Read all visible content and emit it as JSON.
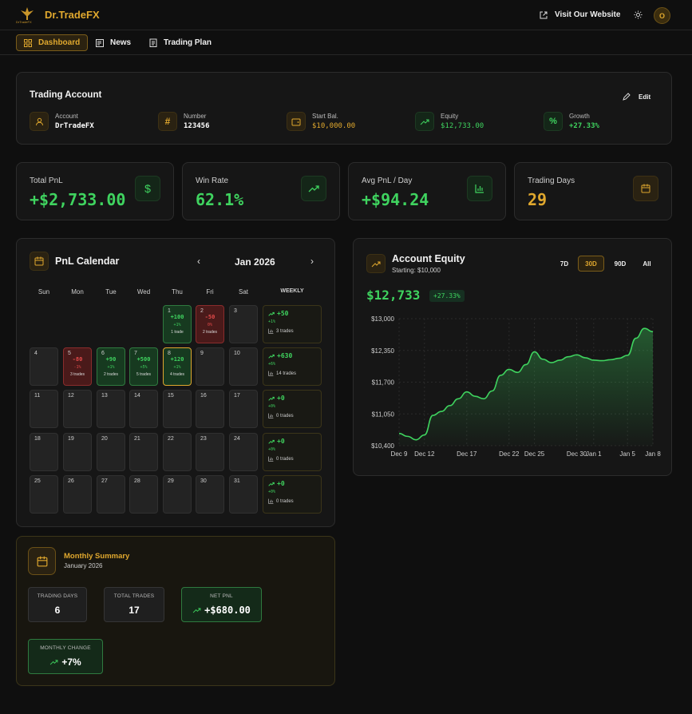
{
  "header": {
    "brand": "Dr.TradeFX",
    "logo_text": "DrTradeFX",
    "visit_label": "Visit Our Website",
    "avatar_initial": "O"
  },
  "nav": {
    "items": [
      {
        "label": "Dashboard",
        "active": true
      },
      {
        "label": "News"
      },
      {
        "label": "Trading Plan"
      }
    ]
  },
  "account": {
    "title": "Trading Account",
    "edit_label": "Edit",
    "fields": [
      {
        "label": "Account",
        "value": "DrTradeFX",
        "icon": "user-icon"
      },
      {
        "label": "Number",
        "value": "123456",
        "icon": "hash-icon"
      },
      {
        "label": "Start Bal.",
        "value": "$10,000.00",
        "icon": "wallet-icon"
      },
      {
        "label": "Equity",
        "value": "$12,733.00",
        "icon": "trending-up-icon"
      },
      {
        "label": "Growth",
        "value": "+27.33%",
        "icon": "percent-icon"
      }
    ]
  },
  "stats": [
    {
      "title": "Total PnL",
      "value": "+$2,733.00",
      "icon": "dollar-icon"
    },
    {
      "title": "Win Rate",
      "value": "62.1%",
      "icon": "trending-up-icon"
    },
    {
      "title": "Avg PnL / Day",
      "value": "+$94.24",
      "icon": "bar-chart-icon"
    },
    {
      "title": "Trading Days",
      "value": "29",
      "icon": "calendar-icon"
    }
  ],
  "calendar": {
    "title": "PnL Calendar",
    "month": "Jan 2026",
    "weekdays": [
      "Sun",
      "Mon",
      "Tue",
      "Wed",
      "Thu",
      "Fri",
      "Sat"
    ],
    "weekly_label": "WEEKLY",
    "days": {
      "1": {
        "pnl": "+100",
        "pct": "+1%",
        "trades": "1 trade",
        "status": "win"
      },
      "2": {
        "pnl": "-50",
        "pct": "0%",
        "trades": "2 trades",
        "status": "loss"
      },
      "5": {
        "pnl": "-80",
        "pct": "-1%",
        "trades": "3 trades",
        "status": "loss"
      },
      "6": {
        "pnl": "+90",
        "pct": "+1%",
        "trades": "2 trades",
        "status": "win"
      },
      "7": {
        "pnl": "+500",
        "pct": "+5%",
        "trades": "5 trades",
        "status": "win"
      },
      "8": {
        "pnl": "+120",
        "pct": "+1%",
        "trades": "4 trades",
        "status": "win",
        "today": true
      }
    },
    "weekly": [
      {
        "pnl": "+50",
        "pct": "+1%",
        "trades": "3 trades"
      },
      {
        "pnl": "+630",
        "pct": "+6%",
        "trades": "14 trades"
      },
      {
        "pnl": "+0",
        "pct": "+0%",
        "trades": "0 trades"
      },
      {
        "pnl": "+0",
        "pct": "+0%",
        "trades": "0 trades"
      },
      {
        "pnl": "+0",
        "pct": "+0%",
        "trades": "0 trades"
      }
    ]
  },
  "monthly": {
    "title": "Monthly Summary",
    "subtitle": "January 2026",
    "trading_days_label": "TRADING DAYS",
    "trading_days": "6",
    "total_trades_label": "TOTAL TRADES",
    "total_trades": "17",
    "net_pnl_label": "NET PNL",
    "net_pnl": "+$680.00",
    "change_label": "MONTHLY CHANGE",
    "change": "+7%"
  },
  "equity": {
    "title": "Account Equity",
    "subtitle": "Starting: $10,000",
    "value": "$12,733",
    "growth": "+27.33%",
    "ranges": [
      {
        "label": "7D"
      },
      {
        "label": "30D",
        "active": true
      },
      {
        "label": "90D"
      },
      {
        "label": "All"
      }
    ]
  },
  "colors": {
    "accent": "#e0a82e",
    "positive": "#3fd35f",
    "negative": "#e34a4a"
  },
  "chart_data": {
    "type": "area",
    "title": "",
    "xlabel": "",
    "ylabel": "",
    "x": [
      "Dec 9",
      "Dec 10",
      "Dec 11",
      "Dec 12",
      "Dec 13",
      "Dec 14",
      "Dec 15",
      "Dec 16",
      "Dec 17",
      "Dec 18",
      "Dec 19",
      "Dec 20",
      "Dec 21",
      "Dec 22",
      "Dec 23",
      "Dec 24",
      "Dec 25",
      "Dec 26",
      "Dec 27",
      "Dec 28",
      "Dec 29",
      "Dec 30",
      "Dec 31",
      "Jan 1",
      "Jan 2",
      "Jan 3",
      "Jan 4",
      "Jan 5",
      "Jan 6",
      "Jan 7",
      "Jan 8"
    ],
    "x_tick_labels": [
      "Dec 9",
      "Dec 12",
      "Dec 17",
      "Dec 22",
      "Dec 25",
      "Dec 30",
      "Jan 1",
      "Jan 5",
      "Jan 8"
    ],
    "y_tick_labels": [
      "$13,000",
      "$12,350",
      "$11,700",
      "$11,050",
      "$10,400"
    ],
    "series": [
      {
        "values": [
          10650,
          10590,
          10520,
          10620,
          11020,
          11100,
          11220,
          11360,
          11500,
          11410,
          11360,
          11520,
          11840,
          11960,
          11900,
          12060,
          12320,
          12170,
          12100,
          12150,
          12220,
          12260,
          12200,
          12150,
          12140,
          12160,
          12190,
          12250,
          12600,
          12800,
          12733
        ]
      }
    ],
    "ylim": [
      10400,
      13000
    ],
    "grid": true,
    "color": "#3fd35f"
  }
}
